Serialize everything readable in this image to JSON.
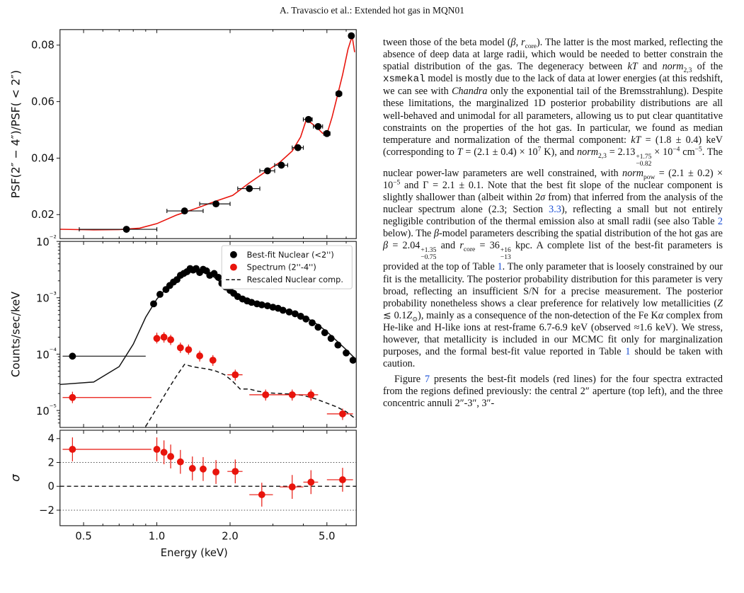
{
  "page": {
    "running_header": "A. Travascio  et al.: Extended hot gas in MQN01"
  },
  "chart_data": [
    {
      "type": "scatter",
      "panel": "top",
      "ylabel": "PSF(2″ − 4″)/PSF( < 2″)",
      "xscale": "log",
      "xlim": [
        0.4,
        6.6
      ],
      "ylim": [
        0.0115,
        0.0855
      ],
      "yticks": [
        0.02,
        0.04,
        0.06,
        0.08
      ],
      "ytick_labels": [
        "0.02",
        "0.04",
        "0.06",
        "0.08"
      ],
      "points": [
        {
          "x": 0.75,
          "y": 0.0148,
          "xlo": 0.48,
          "xhi": 1.0
        },
        {
          "x": 1.3,
          "y": 0.0213,
          "xlo": 1.1,
          "xhi": 1.55
        },
        {
          "x": 1.75,
          "y": 0.0238,
          "xlo": 1.5,
          "xhi": 2.0
        },
        {
          "x": 2.4,
          "y": 0.0292,
          "xlo": 2.15,
          "xhi": 2.65
        },
        {
          "x": 2.85,
          "y": 0.0355,
          "xlo": 2.65,
          "xhi": 3.05
        },
        {
          "x": 3.25,
          "y": 0.0375,
          "xlo": 3.05,
          "xhi": 3.45
        },
        {
          "x": 3.8,
          "y": 0.0437,
          "xlo": 3.6,
          "xhi": 4.0
        },
        {
          "x": 4.2,
          "y": 0.0537,
          "xlo": 4.0,
          "xhi": 4.35
        },
        {
          "x": 4.6,
          "y": 0.0512,
          "xlo": 4.4,
          "xhi": 4.8
        },
        {
          "x": 5.0,
          "y": 0.0487,
          "xlo": 4.85,
          "xhi": 5.15
        },
        {
          "x": 5.6,
          "y": 0.0628,
          "xlo": 5.45,
          "xhi": 5.75
        },
        {
          "x": 6.3,
          "y": 0.0833,
          "xlo": 6.15,
          "xhi": 6.45
        }
      ],
      "model_curve": {
        "x": [
          0.4,
          0.55,
          0.7,
          0.85,
          1.0,
          1.2,
          1.45,
          1.75,
          2.05,
          2.4,
          2.8,
          3.2,
          3.6,
          3.9,
          4.1,
          4.3,
          4.55,
          4.8,
          5.0,
          5.25,
          5.5,
          5.8,
          6.1,
          6.35,
          6.5
        ],
        "y": [
          0.0148,
          0.0146,
          0.0147,
          0.0152,
          0.0168,
          0.0198,
          0.0222,
          0.0248,
          0.0268,
          0.0312,
          0.0352,
          0.0385,
          0.0425,
          0.0475,
          0.0532,
          0.0525,
          0.0508,
          0.0488,
          0.0485,
          0.0545,
          0.0615,
          0.0695,
          0.0785,
          0.0832,
          0.0775
        ]
      },
      "colors": {
        "points": "#000000",
        "model": "#e8140c"
      }
    },
    {
      "type": "scatter",
      "panel": "middle",
      "ylabel": "Counts/sec/keV",
      "yscale": "log",
      "xscale": "log",
      "xlim": [
        0.4,
        6.6
      ],
      "ylim": [
        5e-06,
        0.01
      ],
      "yticks": [
        1e-05,
        0.0001,
        0.001,
        0.01
      ],
      "ytick_labels": [
        "10⁻⁵",
        "10⁻⁴",
        "10⁻³",
        "10⁻²"
      ],
      "legend": {
        "placement": "top-right",
        "entries": [
          {
            "label": "Best-fit Nuclear (<2'')",
            "marker": "dot",
            "color": "#000000"
          },
          {
            "label": "Spectrum (2''-4'')",
            "marker": "dot",
            "color": "#e8140c"
          },
          {
            "label": "Rescaled Nuclear comp.",
            "marker": "dashed",
            "color": "#000000"
          }
        ]
      },
      "series": [
        {
          "role": "nuclear-points",
          "color": "#000000",
          "points": [
            {
              "x": 0.45,
              "y": 9.2e-05,
              "xlo": 0.41,
              "xhi": 0.9
            },
            {
              "x": 0.97,
              "y": 0.00078
            },
            {
              "x": 1.03,
              "y": 0.00115
            },
            {
              "x": 1.09,
              "y": 0.0014
            },
            {
              "x": 1.13,
              "y": 0.00165
            },
            {
              "x": 1.17,
              "y": 0.0019
            },
            {
              "x": 1.21,
              "y": 0.0021
            },
            {
              "x": 1.25,
              "y": 0.0025
            },
            {
              "x": 1.29,
              "y": 0.0027
            },
            {
              "x": 1.33,
              "y": 0.0029
            },
            {
              "x": 1.37,
              "y": 0.0033
            },
            {
              "x": 1.41,
              "y": 0.0031
            },
            {
              "x": 1.45,
              "y": 0.0033
            },
            {
              "x": 1.5,
              "y": 0.0028
            },
            {
              "x": 1.55,
              "y": 0.0032
            },
            {
              "x": 1.6,
              "y": 0.003
            },
            {
              "x": 1.65,
              "y": 0.0025
            },
            {
              "x": 1.72,
              "y": 0.0027
            },
            {
              "x": 1.79,
              "y": 0.0023
            },
            {
              "x": 1.85,
              "y": 0.0018
            },
            {
              "x": 1.92,
              "y": 0.00155
            },
            {
              "x": 2.0,
              "y": 0.00135
            },
            {
              "x": 2.07,
              "y": 0.0012
            },
            {
              "x": 2.15,
              "y": 0.00105
            },
            {
              "x": 2.25,
              "y": 0.00095
            },
            {
              "x": 2.35,
              "y": 0.00088
            },
            {
              "x": 2.45,
              "y": 0.00083
            },
            {
              "x": 2.58,
              "y": 0.00078
            },
            {
              "x": 2.7,
              "y": 0.00075
            },
            {
              "x": 2.85,
              "y": 0.00072
            },
            {
              "x": 3.0,
              "y": 0.00068
            },
            {
              "x": 3.15,
              "y": 0.00065
            },
            {
              "x": 3.3,
              "y": 0.0006
            },
            {
              "x": 3.5,
              "y": 0.00056
            },
            {
              "x": 3.7,
              "y": 0.00052
            },
            {
              "x": 3.9,
              "y": 0.00047
            },
            {
              "x": 4.1,
              "y": 0.00042
            },
            {
              "x": 4.35,
              "y": 0.00036
            },
            {
              "x": 4.6,
              "y": 0.0003
            },
            {
              "x": 4.9,
              "y": 0.00024
            },
            {
              "x": 5.2,
              "y": 0.00019
            },
            {
              "x": 5.55,
              "y": 0.000145
            },
            {
              "x": 6.0,
              "y": 0.000105
            },
            {
              "x": 6.4,
              "y": 7.8e-05
            }
          ],
          "model_curve": {
            "x": [
              0.4,
              0.55,
              0.7,
              0.8,
              0.9,
              1.0,
              1.1,
              1.2,
              1.3,
              1.4,
              1.5,
              1.6,
              1.7,
              1.85,
              2.0,
              2.2,
              2.4,
              2.7,
              3.0,
              3.4,
              3.8,
              4.2,
              4.6,
              5.0,
              5.5,
              6.0,
              6.5
            ],
            "y": [
              2.9e-05,
              3.2e-05,
              6e-05,
              0.00015,
              0.00045,
              0.00095,
              0.0015,
              0.0021,
              0.0026,
              0.0029,
              0.0029,
              0.0027,
              0.0024,
              0.0018,
              0.0014,
              0.00108,
              0.0009,
              0.00078,
              0.0007,
              0.0006,
              0.00052,
              0.00042,
              0.00033,
              0.00025,
              0.00017,
              0.00012,
              8.5e-05
            ]
          }
        },
        {
          "role": "spectrum-points",
          "color": "#e8140c",
          "points": [
            {
              "x": 0.45,
              "y": 1.7e-05,
              "xlo": 0.41,
              "xhi": 0.95,
              "ylo": 1.35e-05,
              "yhi": 2.15e-05
            },
            {
              "x": 1.0,
              "y": 0.00019,
              "ylo": 0.000155,
              "yhi": 0.00024
            },
            {
              "x": 1.07,
              "y": 0.0002,
              "ylo": 0.00016,
              "yhi": 0.000245
            },
            {
              "x": 1.14,
              "y": 0.00018,
              "ylo": 0.000145,
              "yhi": 0.00022
            },
            {
              "x": 1.25,
              "y": 0.00013,
              "ylo": 0.000105,
              "yhi": 0.00016
            },
            {
              "x": 1.35,
              "y": 0.00012,
              "ylo": 9.8e-05,
              "yhi": 0.000148
            },
            {
              "x": 1.5,
              "y": 9.3e-05,
              "ylo": 7.4e-05,
              "yhi": 0.000115
            },
            {
              "x": 1.7,
              "y": 7.8e-05,
              "ylo": 6.2e-05,
              "yhi": 9.6e-05
            },
            {
              "x": 2.1,
              "y": 4.3e-05,
              "ylo": 3.4e-05,
              "yhi": 5.3e-05,
              "xlo": 1.95,
              "xhi": 2.25
            },
            {
              "x": 2.8,
              "y": 1.9e-05,
              "ylo": 1.5e-05,
              "yhi": 2.35e-05,
              "xlo": 2.4,
              "xhi": 3.2
            },
            {
              "x": 3.6,
              "y": 1.9e-05,
              "ylo": 1.5e-05,
              "yhi": 2.35e-05,
              "xlo": 3.2,
              "xhi": 4.0
            },
            {
              "x": 4.3,
              "y": 1.9e-05,
              "ylo": 1.5e-05,
              "yhi": 2.35e-05,
              "xlo": 4.0,
              "xhi": 4.6
            },
            {
              "x": 5.8,
              "y": 8.7e-06,
              "ylo": 6.8e-06,
              "yhi": 1.08e-05,
              "xlo": 5.0,
              "xhi": 6.4
            }
          ]
        },
        {
          "role": "rescaled-nuclear",
          "style": "dashed",
          "color": "#000000",
          "curve": {
            "x": [
              0.9,
              1.0,
              1.1,
              1.2,
              1.3,
              1.4,
              1.5,
              1.6,
              1.75,
              1.9,
              2.05,
              2.2,
              2.4,
              2.6,
              2.9,
              3.2,
              3.6,
              4.0,
              4.5,
              5.0,
              5.5,
              6.0,
              6.6
            ],
            "y": [
              5.2e-06,
              1.1e-05,
              2.2e-05,
              4e-05,
              6.6e-05,
              6e-05,
              5.7e-05,
              5.5e-05,
              5e-05,
              4.3e-05,
              3.3e-05,
              2.4e-05,
              2.4e-05,
              2.2e-05,
              2.05e-05,
              2e-05,
              1.95e-05,
              1.85e-05,
              1.6e-05,
              1.35e-05,
              1.15e-05,
              9.5e-06,
              7e-06
            ]
          }
        }
      ]
    },
    {
      "type": "scatter",
      "panel": "bottom",
      "ylabel": "σ",
      "xlabel": "Energy (keV)",
      "xscale": "log",
      "xlim": [
        0.4,
        6.6
      ],
      "ylim": [
        -3.3,
        4.7
      ],
      "yticks": [
        -2,
        0,
        2,
        4
      ],
      "ytick_labels": [
        "−2",
        "0",
        "2",
        "4"
      ],
      "xticks": [
        0.5,
        1.0,
        2.0,
        5.0
      ],
      "xtick_labels": [
        "0.5",
        "1.0",
        "2.0",
        "5.0"
      ],
      "reference_lines": [
        {
          "y": 0,
          "style": "dashed"
        },
        {
          "y": 2,
          "style": "dotted"
        },
        {
          "y": -2,
          "style": "dotted"
        }
      ],
      "color": "#e8140c",
      "points": [
        {
          "x": 0.45,
          "y": 3.1,
          "yerr": 1.0,
          "xlo": 0.41,
          "xhi": 0.95
        },
        {
          "x": 1.0,
          "y": 3.1,
          "yerr": 1.0
        },
        {
          "x": 1.07,
          "y": 2.85,
          "yerr": 1.0
        },
        {
          "x": 1.14,
          "y": 2.5,
          "yerr": 1.0
        },
        {
          "x": 1.25,
          "y": 2.05,
          "yerr": 1.0
        },
        {
          "x": 1.4,
          "y": 1.5,
          "yerr": 1.0
        },
        {
          "x": 1.55,
          "y": 1.45,
          "yerr": 1.0
        },
        {
          "x": 1.75,
          "y": 1.2,
          "yerr": 1.0
        },
        {
          "x": 2.1,
          "y": 1.25,
          "yerr": 1.0,
          "xlo": 1.95,
          "xhi": 2.25
        },
        {
          "x": 2.7,
          "y": -0.7,
          "yerr": 1.0,
          "xlo": 2.4,
          "xhi": 3.0
        },
        {
          "x": 3.6,
          "y": -0.05,
          "yerr": 1.0,
          "xlo": 3.2,
          "xhi": 4.0
        },
        {
          "x": 4.3,
          "y": 0.35,
          "yerr": 1.0,
          "xlo": 4.0,
          "xhi": 4.6
        },
        {
          "x": 5.8,
          "y": 0.55,
          "yerr": 1.0,
          "xlo": 5.0,
          "xhi": 6.4
        }
      ]
    }
  ],
  "body": {
    "p1": {
      "s1": "tween those of the beta model (",
      "beta": "β",
      "comma": ", ",
      "rcore_r": "r",
      "rcore_sub": "core",
      "s2": "). The latter is the most marked, reflecting the absence of deep data at large radii, which would be needed to better constrain the spatial distribution of the gas. The degeneracy between ",
      "kT": "kT",
      "and": " and ",
      "norm": "norm",
      "norm_sub": "2,3",
      "s3": " of the ",
      "xsmekal": "xsmekal",
      "s4": " model is mostly due to the lack of data at lower energies (at this redshift, we can see with ",
      "chandra": "Chandra",
      "s5": " only the exponential tail of the Bremsstrahlung). Despite these limitations, the marginalized 1D posterior probability distributions are all well-behaved and unimodal for all parameters, allowing us to put clear quantitative constraints on the properties of the hot gas. In particular, we found as median temperature and normalization of the thermal component: ",
      "kT2": "kT",
      "kT_val": " = (1.8 ± 0.4) keV (corresponding to ",
      "T": "T",
      "T_val": " = (2.1 ± 0.4) × 10",
      "T_exp": "7",
      "T_unit": " K), and ",
      "norm2": "norm",
      "norm2_sub": "2,3",
      "norm2_val": " = 2.13",
      "norm2_up": "+1.75",
      "norm2_lo": "−0.82",
      "norm2_times": " × 10",
      "norm2_exp": "−4",
      "norm2_unit": " cm",
      "norm2_unit_exp": "−5",
      "s6": ". The nuclear power-law parameters are well constrained, with ",
      "normpow": "norm",
      "normpow_sub": "pow",
      "normpow_val": " = (2.1 ± 0.2) ×  10",
      "normpow_exp": "−5",
      "gamma_and": " and Γ = 2.1 ± 0.1. Note that the best fit slope of the nuclear component is slightly shallower than (albeit within 2",
      "sigma": "σ",
      "s7": " from) that inferred from the analysis of the nuclear spectrum alone (2.3; Section ",
      "ref_sec": "3.3",
      "s8": "), reflecting a small but not entirely negligible contribution of the thermal emission also at small radii (see also Table ",
      "ref_tab2": "2",
      "s9": " below). The ",
      "beta2": "β",
      "s10": "-model parameters describing the spatial distribution of the hot gas are ",
      "beta3": "β",
      "beta_val": " = 2.04",
      "beta_up": "+1.35",
      "beta_lo": "−0.75",
      "s11": " and ",
      "rc_r": "r",
      "rc_sub": "core",
      "rc_val": " = 36",
      "rc_up": "+16",
      "rc_lo": "−13",
      "s12": " kpc. A complete list of the best-fit parameters is provided at the top of Table ",
      "ref_tab1": "1",
      "s13": ". The only parameter that is loosely constrained by our fit is the metallicity. The posterior probability distribution for this parameter is very broad, reflecting an insufficient S/N for a precise measurement. The posterior probability nonetheless shows a clear preference for relatively low metallicities (",
      "Z": "Z",
      "Z_rel": " ≲ 0.1",
      "Zsun": "Z",
      "Zsun_sub": "⊙",
      "s14": "), mainly as a consequence of the non-detection of the Fe K",
      "alpha": "α",
      "s15": " complex from He-like and H-like ions at rest-frame 6.7-6.9 keV (observed ≈1.6 keV). We stress, however, that metallicity is included in our MCMC fit only for marginalization purposes, and the formal best-fit value reported in Table ",
      "ref_tab1b": "1",
      "s16": " should be taken with caution."
    },
    "p2": {
      "s1": "Figure ",
      "ref_fig": "7",
      "s2": " presents the best-fit models (red lines) for the four spectra extracted from the regions defined previously: the central 2″ aperture (top left), and the three concentric annuli 2″-3″, 3″-"
    }
  }
}
